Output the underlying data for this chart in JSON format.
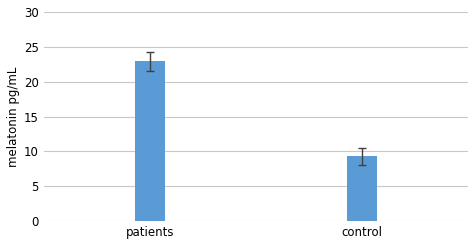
{
  "categories": [
    "patients",
    "control"
  ],
  "values": [
    22.9,
    9.3
  ],
  "errors": [
    1.4,
    1.2
  ],
  "bar_color": "#5B9BD5",
  "bar_width": 0.28,
  "ylabel": "melatonin pg/mL",
  "ylim": [
    0,
    30
  ],
  "yticks": [
    0,
    5,
    10,
    15,
    20,
    25,
    30
  ],
  "background_color": "#ffffff",
  "grid_color": "#c8c8c8",
  "label_fontsize": 8.5,
  "tick_fontsize": 8.5,
  "bar_positions": [
    1,
    3
  ],
  "xlim": [
    0,
    4
  ],
  "errorbar_color": "#404040",
  "errorbar_capsize": 3,
  "errorbar_linewidth": 1.0
}
